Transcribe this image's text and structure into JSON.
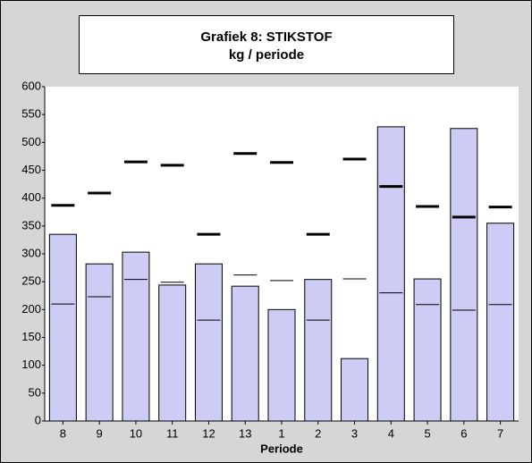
{
  "chart_data": {
    "type": "bar",
    "title": "Grafiek 8: STIKSTOF",
    "subtitle": "kg / periode",
    "x_label": "Periode",
    "categories": [
      "8",
      "9",
      "10",
      "11",
      "12",
      "13",
      "1",
      "2",
      "3",
      "4",
      "5",
      "6",
      "7"
    ],
    "series": [
      {
        "kind": "bar",
        "color": "#ccccf4",
        "values": [
          335,
          282,
          303,
          244,
          282,
          242,
          200,
          254,
          112,
          528,
          255,
          525,
          355
        ]
      },
      {
        "kind": "level",
        "color": "#000000",
        "line_width": 1,
        "values": [
          210,
          223,
          254,
          249,
          181,
          262,
          252,
          181,
          255,
          230,
          209,
          199,
          209
        ]
      },
      {
        "kind": "level",
        "color": "#000000",
        "line_width": 3,
        "values": [
          387,
          409,
          465,
          459,
          335,
          480,
          464,
          335,
          470,
          421,
          385,
          366,
          384
        ]
      }
    ],
    "ylim": [
      0,
      600
    ],
    "yticks": [
      0,
      50,
      100,
      150,
      200,
      250,
      300,
      350,
      400,
      450,
      500,
      550,
      600
    ],
    "grid": false
  }
}
